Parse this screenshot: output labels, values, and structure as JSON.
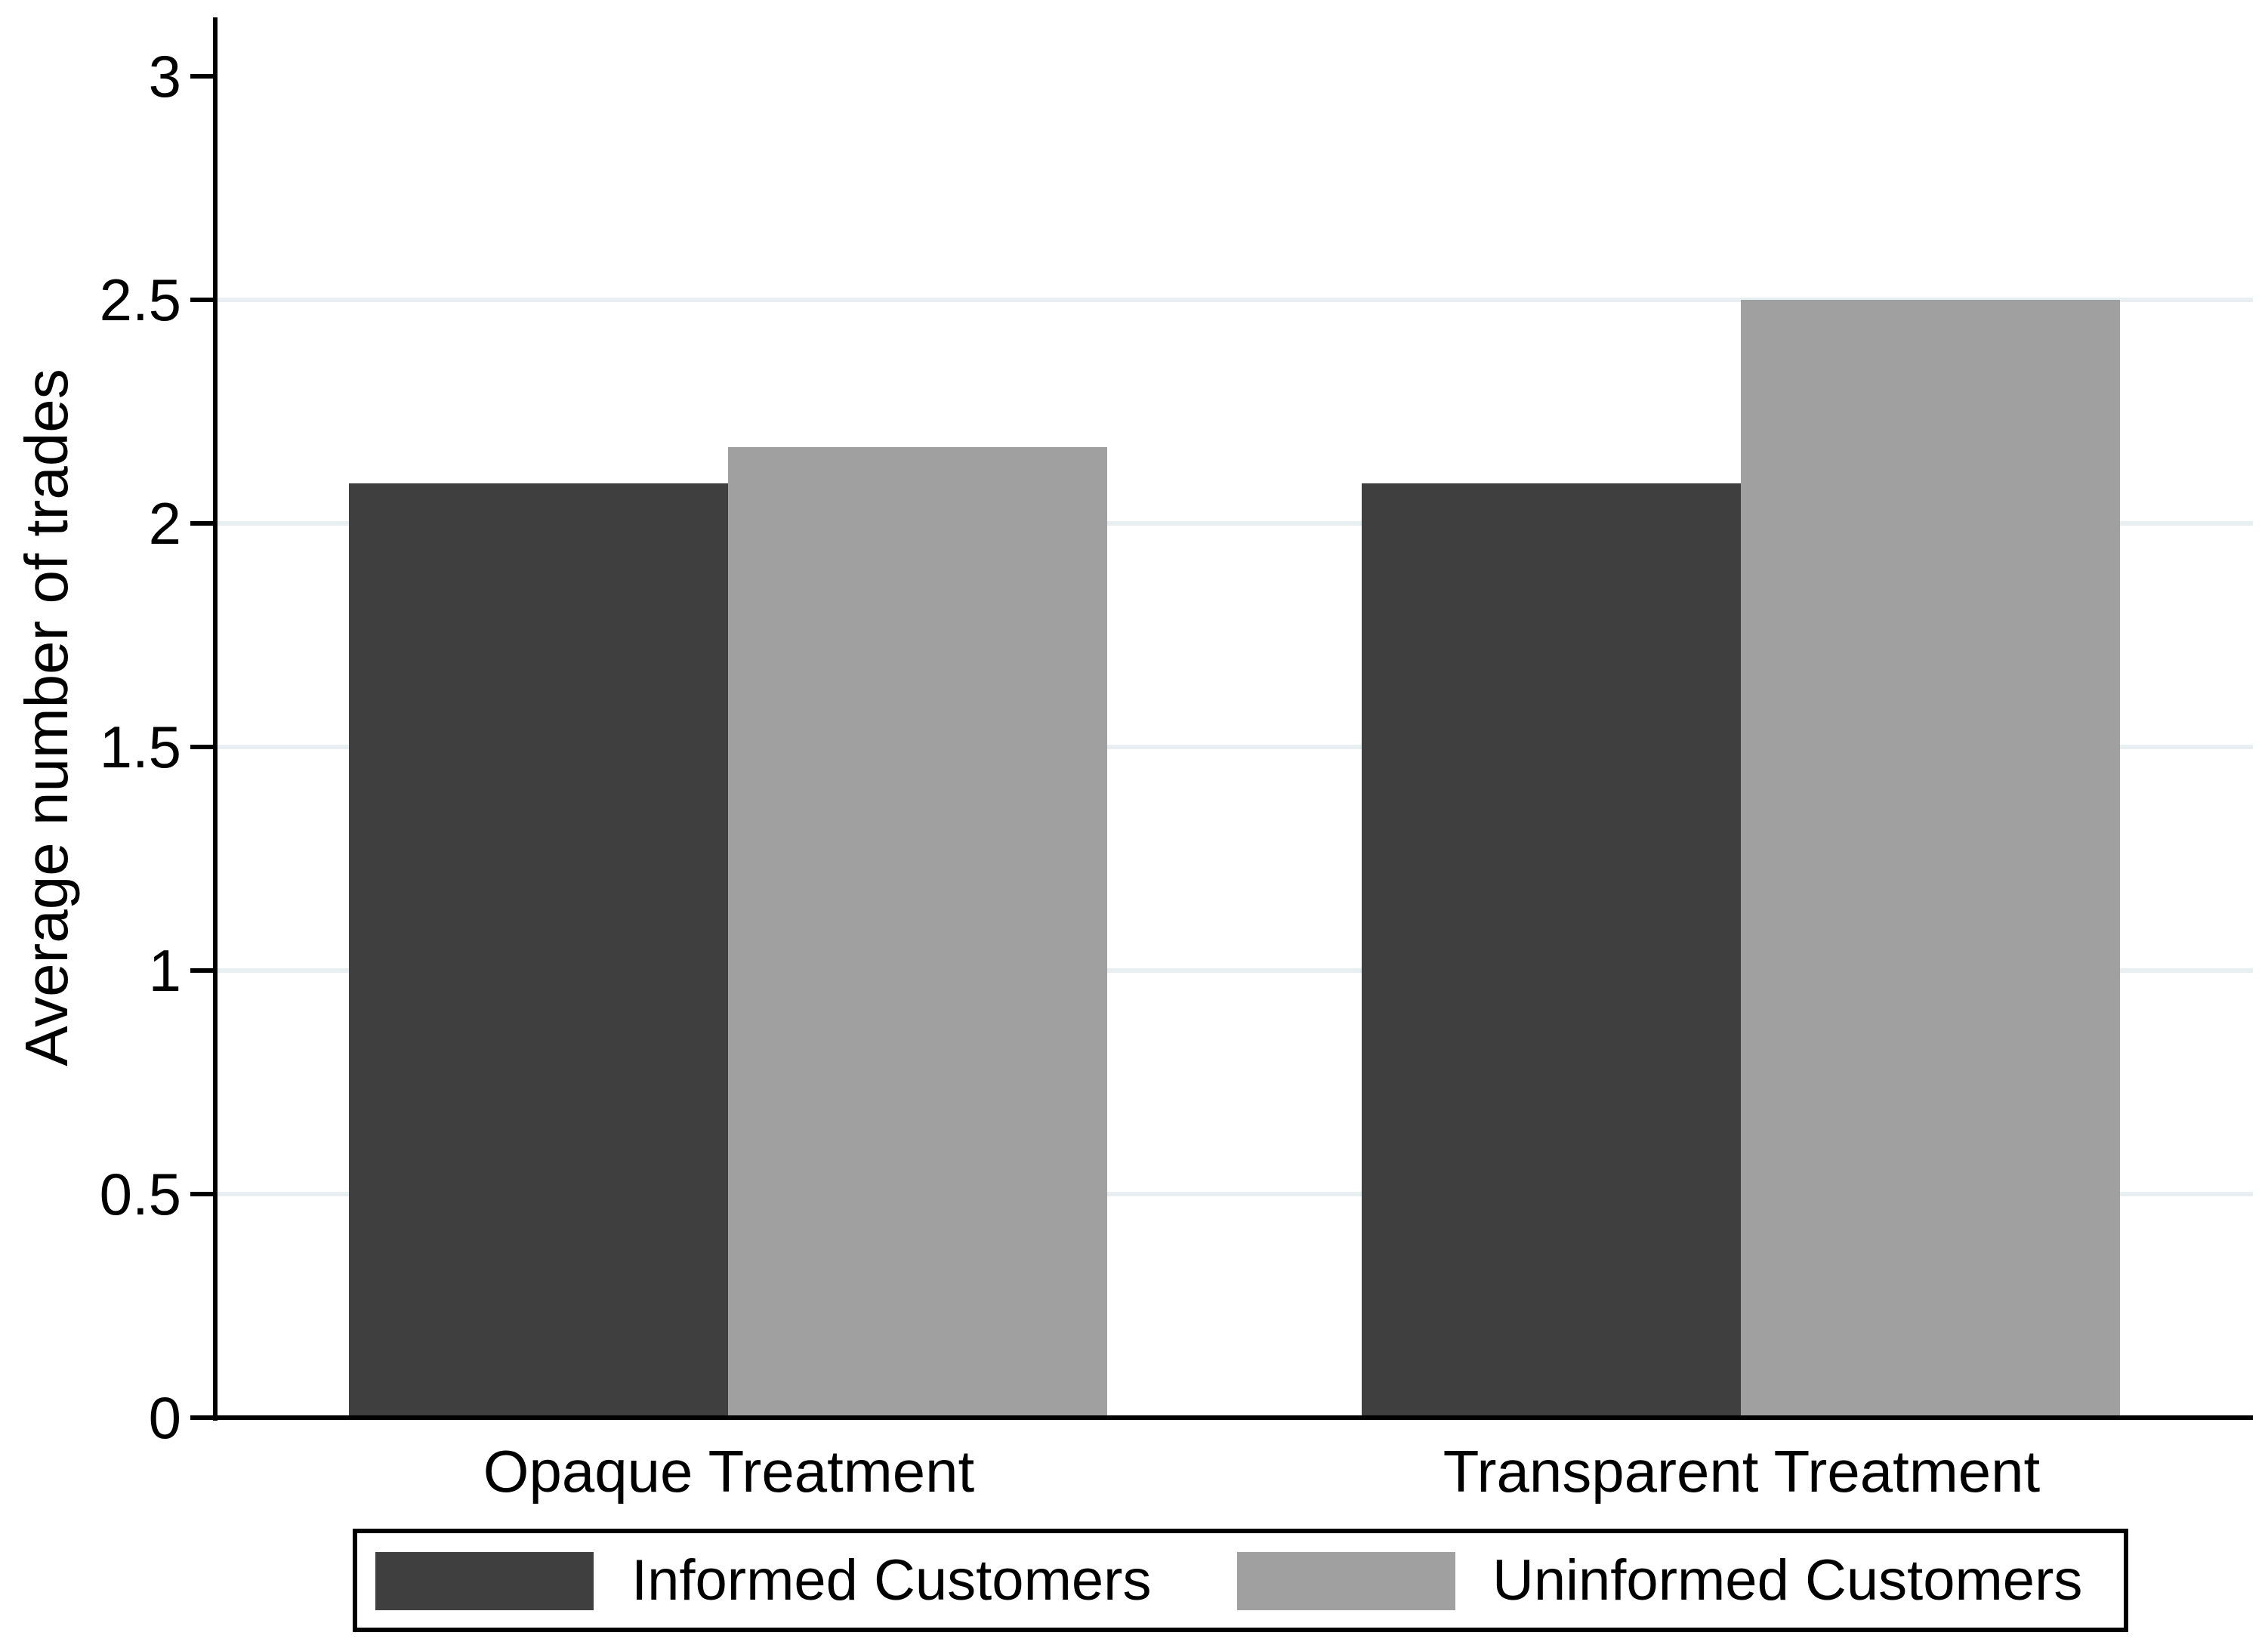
{
  "page": {
    "background_color": "#ffffff",
    "axis_color": "#000000"
  },
  "chart_data": {
    "type": "bar",
    "title": "",
    "categories": [
      "Opaque Treatment",
      "Transparent Treatment"
    ],
    "series": [
      {
        "name": "Informed Customers",
        "values": [
          2.09,
          2.09
        ],
        "color": "#3f3f3f"
      },
      {
        "name": "Uninformed Customers",
        "values": [
          2.17,
          2.5
        ],
        "color": "#a0a0a0"
      }
    ],
    "xlabel": "",
    "ylabel": "Average number of trades",
    "ylim": [
      0,
      3
    ],
    "yticks": [
      {
        "value": 0,
        "label": "0"
      },
      {
        "value": 0.5,
        "label": "0.5"
      },
      {
        "value": 1,
        "label": "1"
      },
      {
        "value": 1.5,
        "label": "1.5"
      },
      {
        "value": 2,
        "label": "2"
      },
      {
        "value": 2.5,
        "label": "2.5"
      },
      {
        "value": 3,
        "label": "3"
      }
    ],
    "gridlines_at": [
      0.5,
      1,
      1.5,
      2,
      2.5
    ],
    "grid_color": "#e8eff1",
    "grid_on": true,
    "legend": {
      "position": "bottom",
      "bordered": true,
      "entries": [
        "Informed Customers",
        "Uninformed Customers"
      ]
    }
  }
}
